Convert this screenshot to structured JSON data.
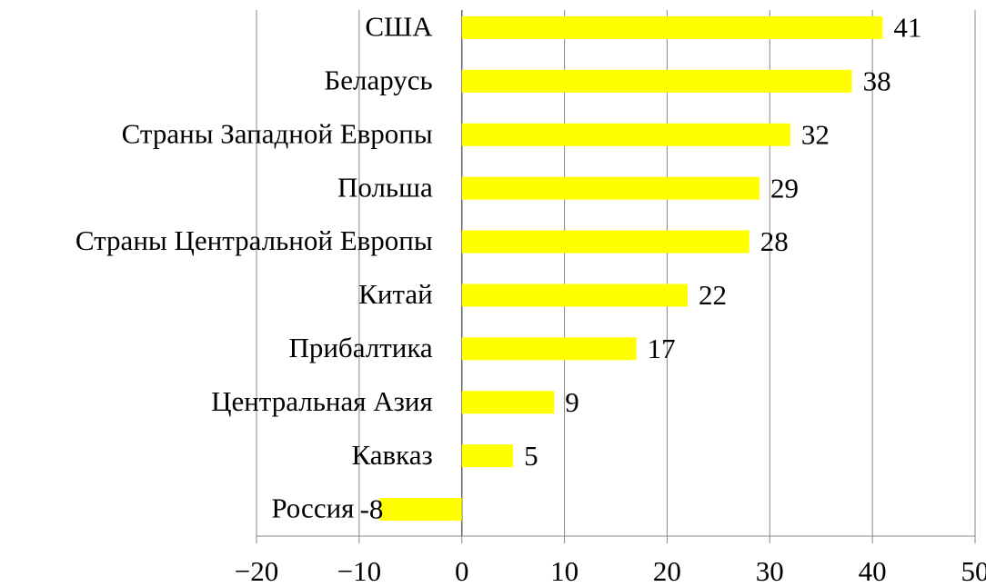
{
  "chart_data": {
    "type": "hbar",
    "categories": [
      "США",
      "Беларусь",
      "Страны Западной Европы",
      "Польша",
      "Страны Центральной Европы",
      "Китай",
      "Прибалтика",
      "Центральная Азия",
      "Кавказ",
      "Россия"
    ],
    "values": [
      41,
      38,
      32,
      29,
      28,
      22,
      17,
      9,
      5,
      -8
    ],
    "color": "#ffff00",
    "xlim": [
      -20,
      50
    ],
    "xticks": [
      {
        "value": -20,
        "label": "−20"
      },
      {
        "value": -10,
        "label": "−10"
      },
      0,
      10,
      20,
      30,
      40,
      50
    ],
    "grid": true
  }
}
